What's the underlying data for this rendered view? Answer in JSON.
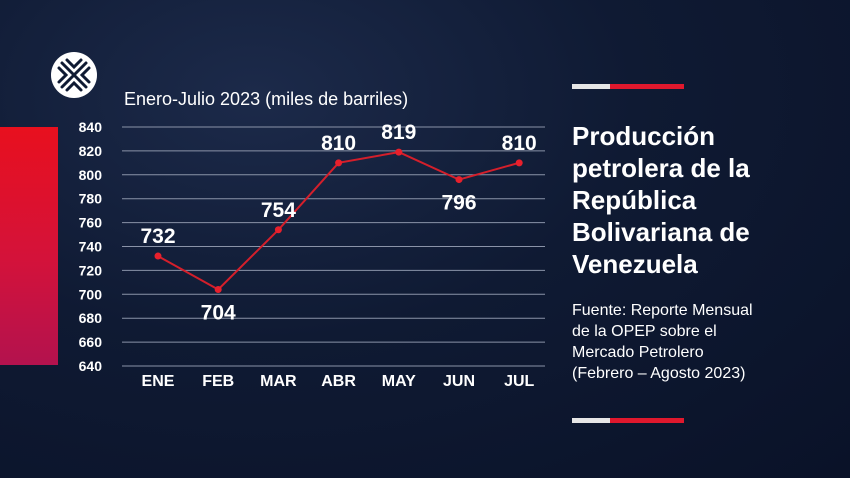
{
  "header": {
    "subtitle": "Enero-Julio 2023 (miles de barriles)"
  },
  "side_panel": {
    "title_lines": [
      "Producción",
      "petrolera de la",
      "República",
      "Bolivariana de",
      "Venezuela"
    ],
    "source_lines": [
      "Fuente: Reporte Mensual",
      "de la OPEP sobre el",
      "Mercado Petrolero",
      "(Febrero – Agosto 2023)"
    ]
  },
  "colors": {
    "background": "#0f1a33",
    "line": "#d41f2b",
    "grid": "#8a93a8",
    "accent_red": "#e0182d"
  },
  "chart_data": {
    "type": "line",
    "title": "",
    "subtitle": "Enero-Julio 2023 (miles de barriles)",
    "categories": [
      "ENE",
      "FEB",
      "MAR",
      "ABR",
      "MAY",
      "JUN",
      "JUL"
    ],
    "values": [
      732,
      704,
      754,
      810,
      819,
      796,
      810
    ],
    "data_labels": [
      "732",
      "704",
      "754",
      "810",
      "819",
      "796",
      "810"
    ],
    "yticks": [
      640,
      660,
      680,
      700,
      720,
      740,
      760,
      780,
      800,
      820,
      840
    ],
    "ylim": [
      640,
      840
    ],
    "grid": true,
    "legend": "none"
  }
}
